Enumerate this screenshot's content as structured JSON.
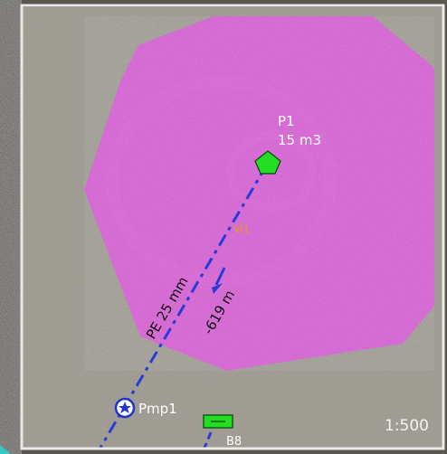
{
  "map": {
    "colors": {
      "zone_fill": "#e64fe6",
      "pipe": "#2a3ad8",
      "node_fill": "#22dd22",
      "pump_fill": "#2233cc",
      "scale_text": "#f4f4f4",
      "label_text": "#ffffff",
      "pipe_label_text": "#111111",
      "zone_code_text": "#e8a000",
      "frame": "#e9e9e9"
    },
    "reservoir": {
      "name": "P1",
      "volume": "15 m3",
      "icon": "pentagon-node-icon"
    },
    "zone_code": "VI1",
    "pipe": {
      "material_size": "PE 25 mm",
      "length": "619 m",
      "icon": "flow-direction-arrow-icon"
    },
    "pump": {
      "name": "Pmp1",
      "icon": "pump-star-icon"
    },
    "valve_box": {
      "name": "B8",
      "icon": "valve-box-icon"
    },
    "scale": "1:500"
  }
}
